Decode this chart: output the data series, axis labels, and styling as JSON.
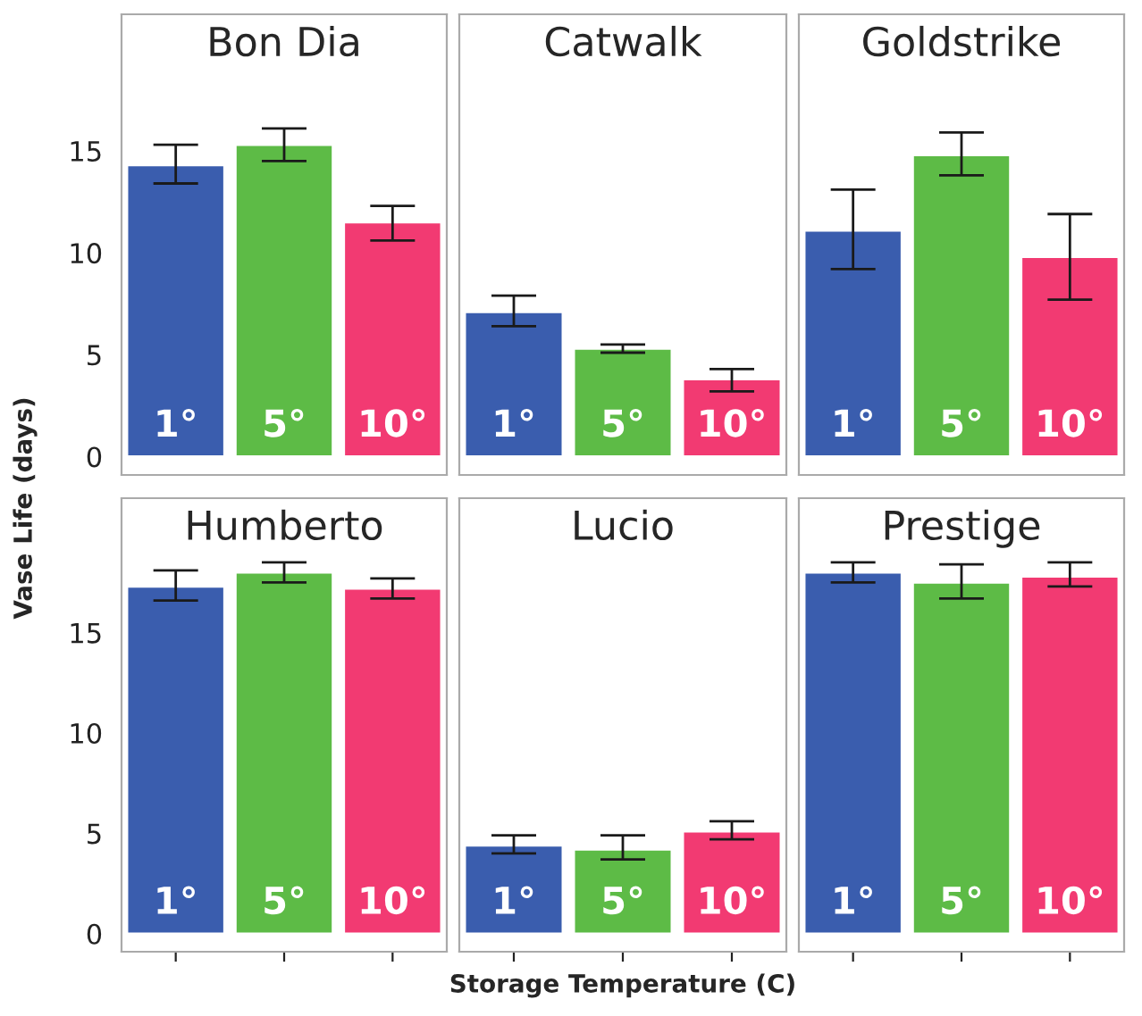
{
  "chart_data": [
    {
      "type": "bar",
      "title": "Bon Dia",
      "ylabel": "Vase Life (days)",
      "categories": [
        "1°",
        "5°",
        "10°"
      ],
      "values": [
        14.3,
        15.3,
        11.5
      ],
      "colors": [
        "#3a5dae",
        "#5dbb46",
        "#f23a72"
      ],
      "errors": [
        [
          13.4,
          15.3
        ],
        [
          14.5,
          16.1
        ],
        [
          10.6,
          12.3
        ]
      ],
      "ylim": [
        -0.9,
        21.7
      ],
      "yticks": [
        0,
        5,
        10,
        15
      ],
      "tick_labels": "y"
    },
    {
      "type": "bar",
      "title": "Catwalk",
      "categories": [
        "1°",
        "5°",
        "10°"
      ],
      "values": [
        7.1,
        5.3,
        3.8
      ],
      "colors": [
        "#3a5dae",
        "#5dbb46",
        "#f23a72"
      ],
      "errors": [
        [
          6.4,
          7.9
        ],
        [
          5.1,
          5.5
        ],
        [
          3.2,
          4.3
        ]
      ],
      "ylim": [
        -0.9,
        21.7
      ],
      "yticks": [
        0,
        5,
        10,
        15
      ],
      "tick_labels": false
    },
    {
      "type": "bar",
      "title": "Goldstrike",
      "categories": [
        "1°",
        "5°",
        "10°"
      ],
      "values": [
        11.1,
        14.8,
        9.8
      ],
      "colors": [
        "#3a5dae",
        "#5dbb46",
        "#f23a72"
      ],
      "errors": [
        [
          9.2,
          13.1
        ],
        [
          13.8,
          15.9
        ],
        [
          7.7,
          11.9
        ]
      ],
      "ylim": [
        -0.9,
        21.7
      ],
      "yticks": [
        0,
        5,
        10,
        15
      ],
      "tick_labels": false
    },
    {
      "type": "bar",
      "title": "Humberto",
      "categories": [
        "1°",
        "5°",
        "10°"
      ],
      "values": [
        17.3,
        18.0,
        17.2
      ],
      "colors": [
        "#3a5dae",
        "#5dbb46",
        "#f23a72"
      ],
      "errors": [
        [
          16.6,
          18.1
        ],
        [
          17.5,
          18.5
        ],
        [
          16.7,
          17.7
        ]
      ],
      "ylim": [
        -0.9,
        21.7
      ],
      "yticks": [
        0,
        5,
        10,
        15
      ],
      "tick_labels": "y"
    },
    {
      "type": "bar",
      "title": "Lucio",
      "xlabel": "Storage Temperature (C)",
      "categories": [
        "1°",
        "5°",
        "10°"
      ],
      "values": [
        4.4,
        4.2,
        5.1
      ],
      "colors": [
        "#3a5dae",
        "#5dbb46",
        "#f23a72"
      ],
      "errors": [
        [
          4.0,
          4.9
        ],
        [
          3.7,
          4.9
        ],
        [
          4.7,
          5.6
        ]
      ],
      "ylim": [
        -0.9,
        21.7
      ],
      "yticks": [
        0,
        5,
        10,
        15
      ],
      "tick_labels": false
    },
    {
      "type": "bar",
      "title": "Prestige",
      "categories": [
        "1°",
        "5°",
        "10°"
      ],
      "values": [
        18.0,
        17.5,
        17.8
      ],
      "colors": [
        "#3a5dae",
        "#5dbb46",
        "#f23a72"
      ],
      "errors": [
        [
          17.5,
          18.5
        ],
        [
          16.7,
          18.4
        ],
        [
          17.3,
          18.5
        ]
      ],
      "ylim": [
        -0.9,
        21.7
      ],
      "yticks": [
        0,
        5,
        10,
        15
      ],
      "tick_labels": false
    }
  ]
}
